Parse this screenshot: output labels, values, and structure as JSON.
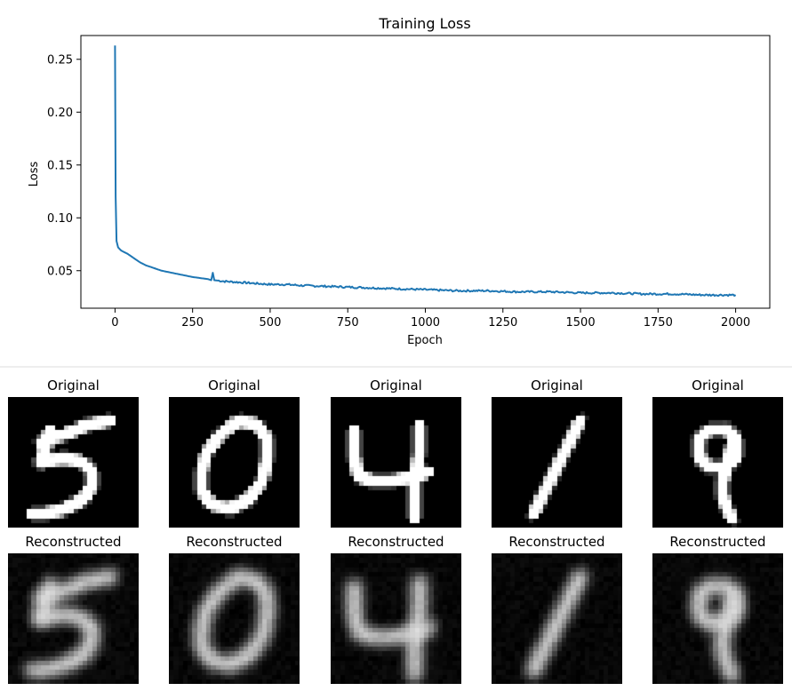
{
  "chart_data": {
    "type": "line",
    "title": "Training Loss",
    "xlabel": "Epoch",
    "ylabel": "Loss",
    "xlim": [
      -110,
      2110
    ],
    "ylim": [
      0.0145,
      0.2725
    ],
    "xticks": [
      0,
      250,
      500,
      750,
      1000,
      1250,
      1500,
      1750,
      2000
    ],
    "yticks": [
      0.05,
      0.1,
      0.15,
      0.2,
      0.25
    ],
    "ytick_labels": [
      "0.05",
      "0.10",
      "0.15",
      "0.20",
      "0.25"
    ],
    "grid": false,
    "series": [
      {
        "color": "#1f77b4",
        "x": [
          0,
          2,
          5,
          10,
          20,
          40,
          60,
          80,
          100,
          150,
          200,
          250,
          300,
          310,
          315,
          320,
          350,
          400,
          450,
          500,
          550,
          600,
          700,
          800,
          900,
          1000,
          1100,
          1200,
          1300,
          1400,
          1500,
          1600,
          1700,
          1800,
          1900,
          2000
        ],
        "y": [
          0.263,
          0.12,
          0.078,
          0.072,
          0.069,
          0.066,
          0.062,
          0.058,
          0.055,
          0.05,
          0.047,
          0.044,
          0.042,
          0.041,
          0.048,
          0.041,
          0.04,
          0.039,
          0.038,
          0.037,
          0.037,
          0.036,
          0.035,
          0.034,
          0.033,
          0.032,
          0.031,
          0.031,
          0.03,
          0.03,
          0.029,
          0.029,
          0.028,
          0.028,
          0.027,
          0.027
        ]
      }
    ]
  },
  "samples": {
    "original_label": "Original",
    "reconstructed_label": "Reconstructed",
    "digits": [
      "5",
      "0",
      "4",
      "1",
      "9"
    ]
  }
}
